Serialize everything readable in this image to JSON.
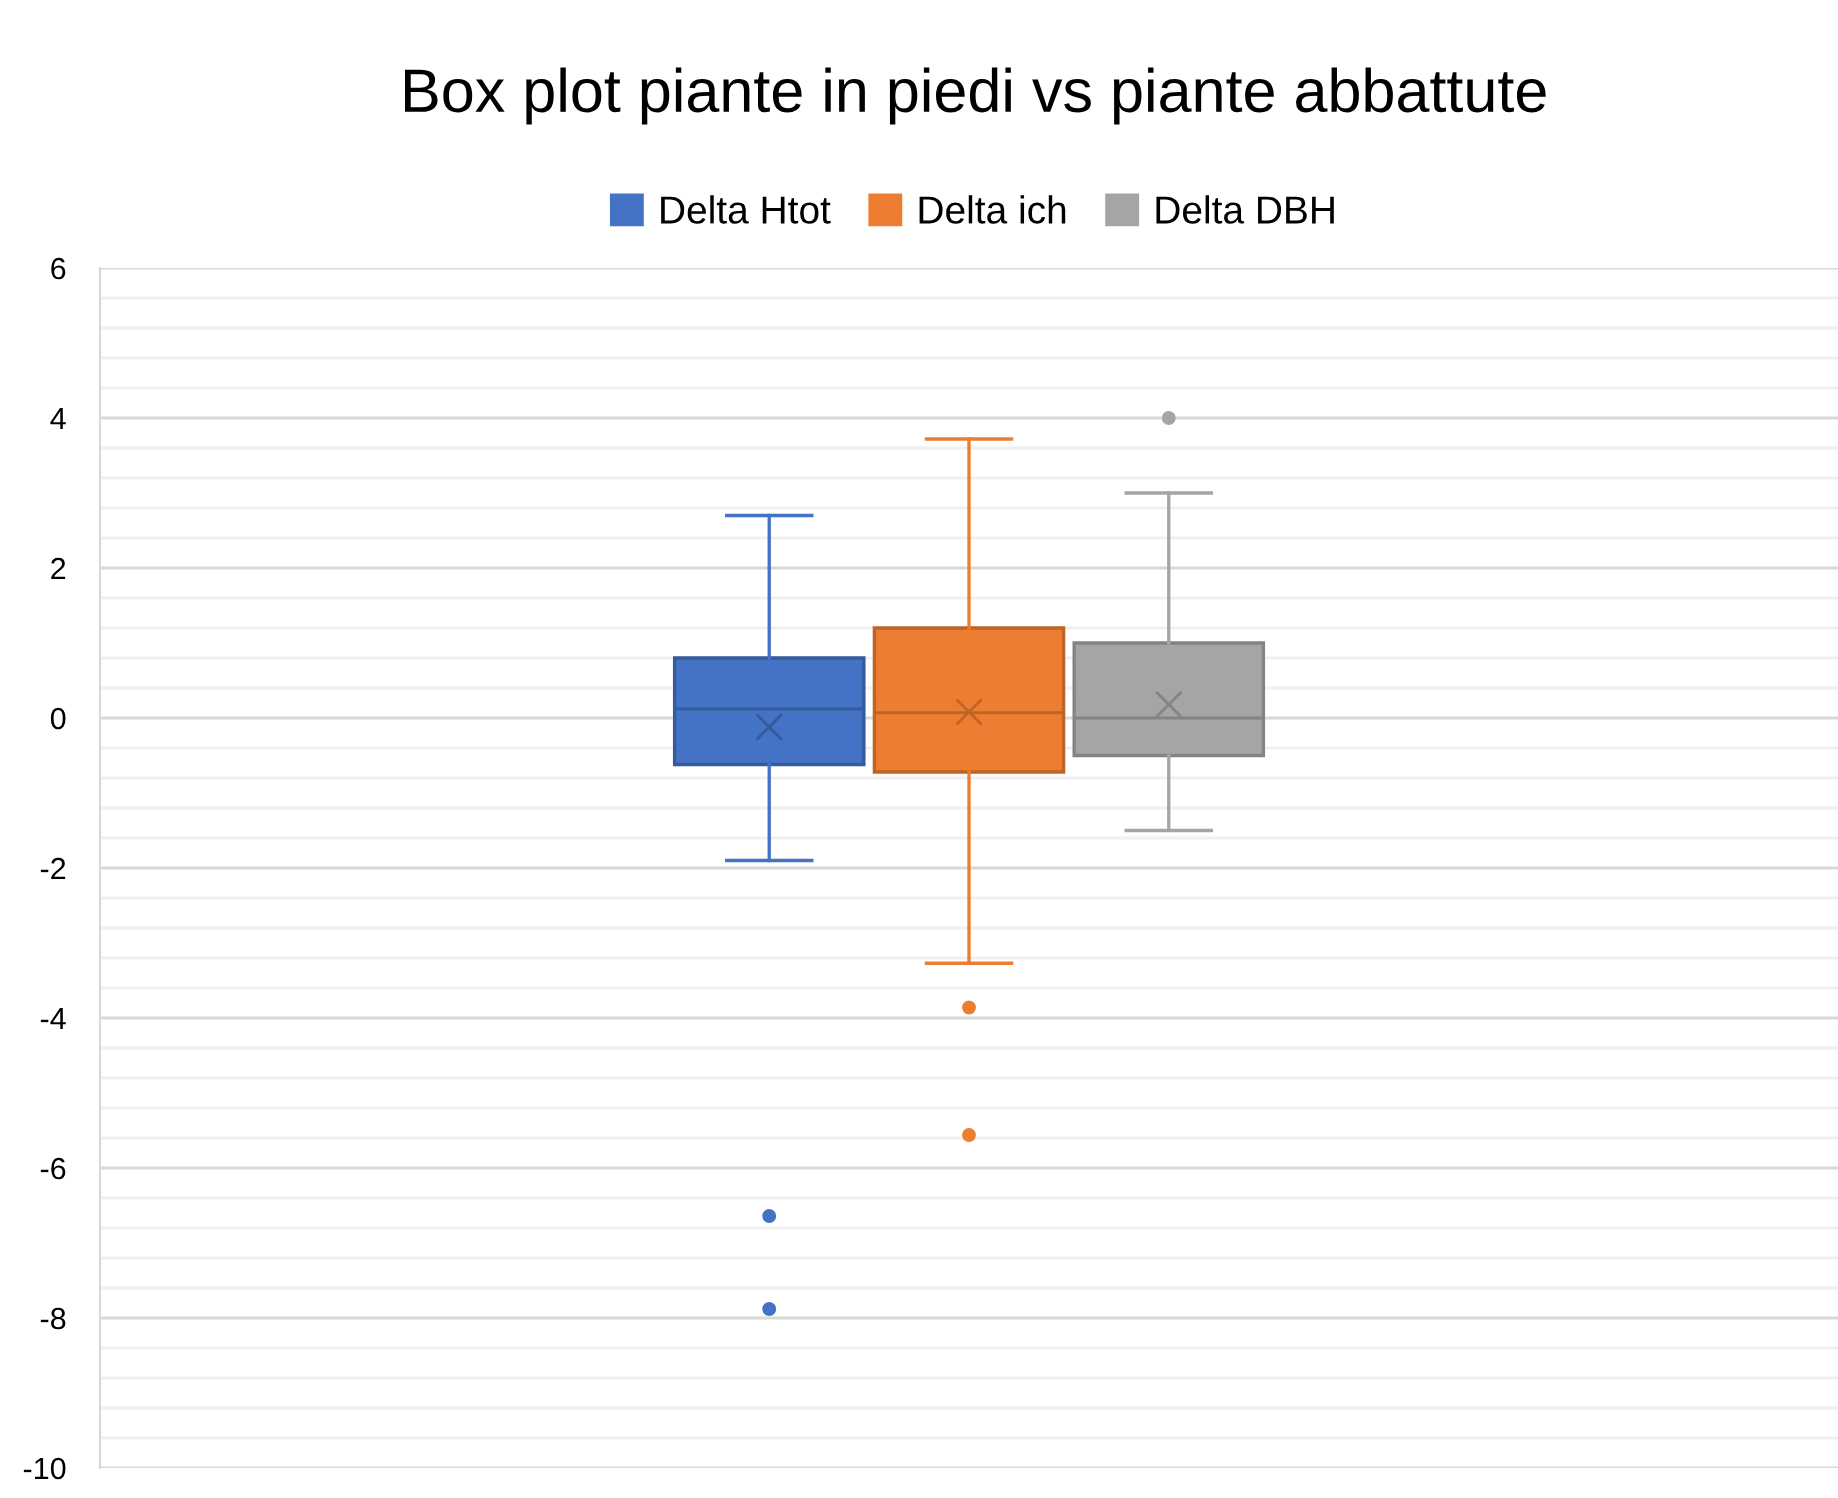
{
  "chart_data": {
    "type": "box",
    "title": "Box plot piante in piedi vs piante abbattute",
    "categories": [
      null
    ],
    "series": [
      {
        "name": "Delta Htot",
        "color": "#4472c4",
        "boxes": [
          {
            "low": -1.9,
            "q1": -0.62,
            "median": 0.12,
            "q3": 0.8,
            "high": 2.7,
            "mean": -0.12,
            "outliers": [
              -6.64,
              -7.88
            ]
          }
        ]
      },
      {
        "name": "Delta ich",
        "color": "#ed7d31",
        "boxes": [
          {
            "low": -3.27,
            "q1": -0.72,
            "median": 0.07,
            "q3": 1.2,
            "high": 3.72,
            "mean": 0.08,
            "outliers": [
              -3.86,
              -5.56
            ]
          }
        ]
      },
      {
        "name": "Delta DBH",
        "color": "#a5a5a5",
        "boxes": [
          {
            "low": -1.5,
            "q1": -0.5,
            "median": 0,
            "q3": 1.0,
            "high": 3.0,
            "mean": 0.18,
            "outliers": [
              4.0
            ]
          }
        ]
      }
    ],
    "ylim": [
      -10,
      6
    ],
    "yticks": [
      -10,
      {
        "value": -9.6,
        "label": null
      },
      {
        "value": -9.2,
        "label": null
      },
      {
        "value": -8.8,
        "label": null
      },
      {
        "value": -8.4,
        "label": null
      },
      -8,
      {
        "value": -7.6,
        "label": null
      },
      {
        "value": -7.2,
        "label": null
      },
      {
        "value": -6.8,
        "label": null
      },
      {
        "value": -6.4,
        "label": null
      },
      -6,
      {
        "value": -5.6,
        "label": null
      },
      {
        "value": -5.2,
        "label": null
      },
      {
        "value": -4.8,
        "label": null
      },
      {
        "value": -4.4,
        "label": null
      },
      -4,
      {
        "value": -3.6,
        "label": null
      },
      {
        "value": -3.2,
        "label": null
      },
      {
        "value": -2.8,
        "label": null
      },
      {
        "value": -2.4,
        "label": null
      },
      -2,
      {
        "value": -1.6,
        "label": null
      },
      {
        "value": -1.2,
        "label": null
      },
      {
        "value": -0.8,
        "label": null
      },
      {
        "value": -0.4,
        "label": null
      },
      0,
      {
        "value": 0.4,
        "label": null
      },
      {
        "value": 0.8,
        "label": null
      },
      {
        "value": 1.2,
        "label": null
      },
      {
        "value": 1.6,
        "label": null
      },
      2,
      {
        "value": 2.4,
        "label": null
      },
      {
        "value": 2.8,
        "label": null
      },
      {
        "value": 3.2,
        "label": null
      },
      {
        "value": 3.6,
        "label": null
      },
      4,
      {
        "value": 4.4,
        "label": null
      },
      {
        "value": 4.8,
        "label": null
      },
      {
        "value": 5.2,
        "label": null
      },
      {
        "value": 5.6,
        "label": null
      },
      6
    ],
    "grid": "y",
    "legend": "top",
    "marker": "circle"
  }
}
